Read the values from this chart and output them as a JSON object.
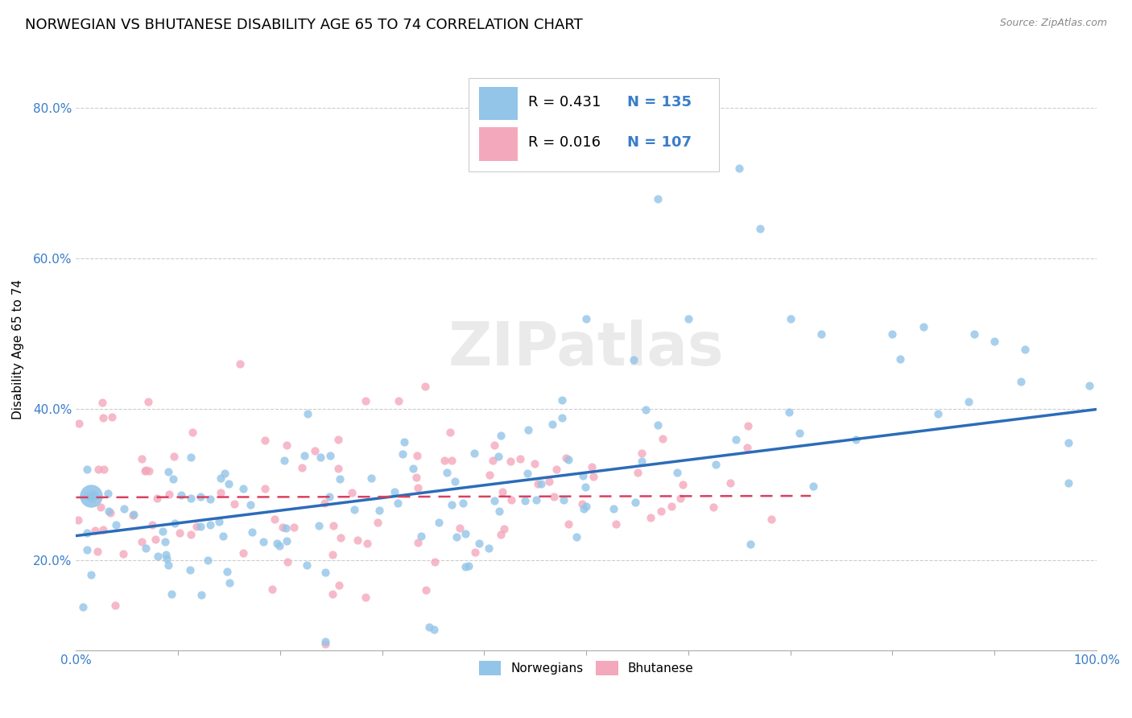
{
  "title": "NORWEGIAN VS BHUTANESE DISABILITY AGE 65 TO 74 CORRELATION CHART",
  "source": "Source: ZipAtlas.com",
  "ylabel": "Disability Age 65 to 74",
  "ytick_values": [
    0.2,
    0.4,
    0.6,
    0.8
  ],
  "ytick_labels": [
    "20.0%",
    "40.0%",
    "60.0%",
    "80.0%"
  ],
  "xlim": [
    0.0,
    1.0
  ],
  "ylim": [
    0.08,
    0.88
  ],
  "legend_r1": "R = 0.431",
  "legend_n1": "N = 135",
  "legend_r2": "R = 0.016",
  "legend_n2": "N = 107",
  "norwegian_color": "#92C5E8",
  "bhutanese_color": "#F4A8BC",
  "norwegian_line_color": "#2B6CB8",
  "bhutanese_line_color": "#D94060",
  "background_color": "#FFFFFF",
  "grid_color": "#CCCCCC",
  "title_fontsize": 13,
  "axis_label_fontsize": 11,
  "tick_fontsize": 11,
  "legend_fontsize": 13,
  "nor_line_start_y": 0.232,
  "nor_line_end_y": 0.4,
  "bhu_line_y": 0.283,
  "bhu_line_end_x": 0.72
}
